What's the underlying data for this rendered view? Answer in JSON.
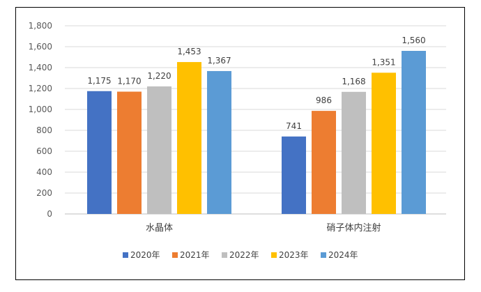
{
  "chart_data": {
    "type": "bar",
    "title": "",
    "xlabel": "",
    "ylabel": "",
    "categories": [
      "水晶体",
      "硝子体内注射"
    ],
    "ylim": [
      0,
      1800
    ],
    "yticks": [
      0,
      200,
      400,
      600,
      800,
      1000,
      1200,
      1400,
      1600,
      1800
    ],
    "ytick_labels": [
      "0",
      "200",
      "400",
      "600",
      "800",
      "1,000",
      "1,200",
      "1,400",
      "1,600",
      "1,800"
    ],
    "grid": true,
    "legend_position": "bottom",
    "series": [
      {
        "name": "2020年",
        "color": "#4472C4",
        "values": [
          1175,
          741
        ],
        "labels": [
          "1,175",
          "741"
        ]
      },
      {
        "name": "2021年",
        "color": "#ED7D31",
        "values": [
          1170,
          986
        ],
        "labels": [
          "1,170",
          "986"
        ]
      },
      {
        "name": "2022年",
        "color": "#BFBFBF",
        "values": [
          1220,
          1168
        ],
        "labels": [
          "1,220",
          "1,168"
        ]
      },
      {
        "name": "2023年",
        "color": "#FFC000",
        "values": [
          1453,
          1351
        ],
        "labels": [
          "1,453",
          "1,351"
        ]
      },
      {
        "name": "2024年",
        "color": "#5B9BD5",
        "values": [
          1367,
          1560
        ],
        "labels": [
          "1,367",
          "1,560"
        ]
      }
    ]
  }
}
